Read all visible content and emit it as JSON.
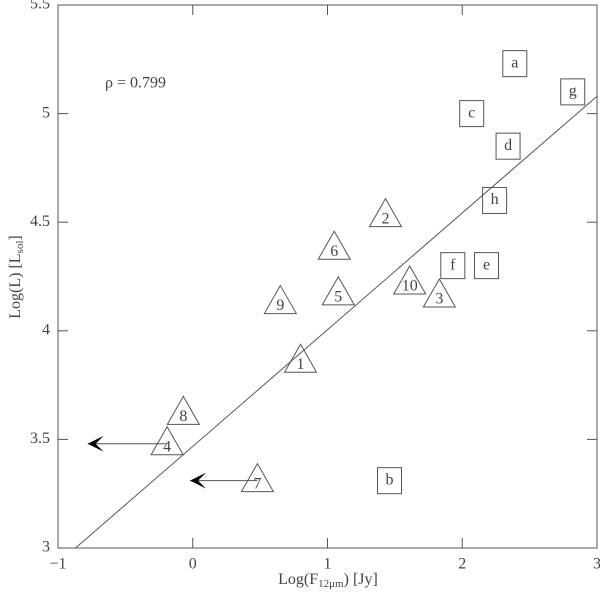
{
  "chart_data": {
    "type": "scatter",
    "xlabel": [
      "Log(F",
      "12μm",
      ") [Jy]"
    ],
    "ylabel": [
      "Log(L) [L",
      "sol",
      "]"
    ],
    "annotation": "ρ = 0.799",
    "xlim": [
      -1,
      3
    ],
    "ylim": [
      3,
      5.5
    ],
    "xticks": [
      {
        "value": -1,
        "label": "−1"
      },
      0,
      1,
      2,
      3
    ],
    "yticks": [
      3,
      3.5,
      4,
      4.5,
      5,
      5.5
    ],
    "points": [
      {
        "label": "1",
        "marker": "triangle",
        "x": 0.8,
        "y": 3.86
      },
      {
        "label": "2",
        "marker": "triangle",
        "x": 1.43,
        "y": 4.53
      },
      {
        "label": "3",
        "marker": "triangle",
        "x": 1.83,
        "y": 4.16
      },
      {
        "label": "4",
        "marker": "triangle",
        "x": -0.19,
        "y": 3.48,
        "arrow_x_end": -0.78
      },
      {
        "label": "5",
        "marker": "triangle",
        "x": 1.08,
        "y": 4.17
      },
      {
        "label": "6",
        "marker": "triangle",
        "x": 1.05,
        "y": 4.38
      },
      {
        "label": "7",
        "marker": "triangle",
        "x": 0.48,
        "y": 3.31,
        "arrow_x_end": -0.02
      },
      {
        "label": "8",
        "marker": "triangle",
        "x": -0.07,
        "y": 3.62
      },
      {
        "label": "9",
        "marker": "triangle",
        "x": 0.65,
        "y": 4.13
      },
      {
        "label": "10",
        "marker": "triangle",
        "x": 1.61,
        "y": 4.22
      },
      {
        "label": "a",
        "marker": "square",
        "x": 2.39,
        "y": 5.23
      },
      {
        "label": "b",
        "marker": "square",
        "x": 1.46,
        "y": 3.31
      },
      {
        "label": "c",
        "marker": "square",
        "x": 2.07,
        "y": 5.0
      },
      {
        "label": "d",
        "marker": "square",
        "x": 2.34,
        "y": 4.85
      },
      {
        "label": "e",
        "marker": "square",
        "x": 2.18,
        "y": 4.3
      },
      {
        "label": "f",
        "marker": "square",
        "x": 1.93,
        "y": 4.3
      },
      {
        "label": "g",
        "marker": "square",
        "x": 2.82,
        "y": 5.1
      },
      {
        "label": "h",
        "marker": "square",
        "x": 2.24,
        "y": 4.6
      }
    ],
    "fit_line": {
      "x": [
        -0.87,
        3
      ],
      "y": [
        3,
        5.08
      ]
    }
  }
}
